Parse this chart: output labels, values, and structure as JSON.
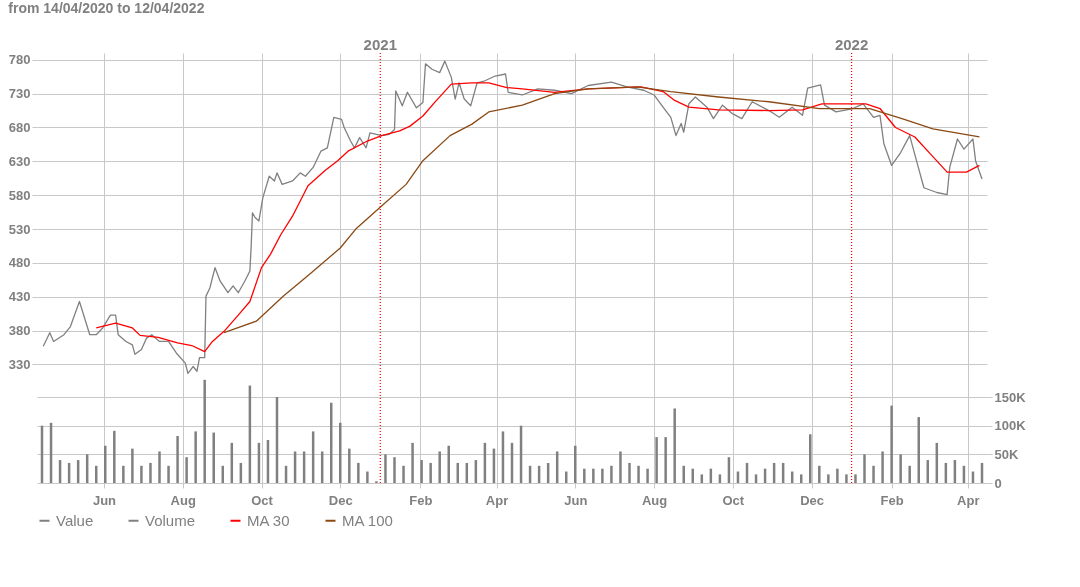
{
  "chart_data": {
    "type": "line",
    "title": "from 14/04/2020 to 12/04/2022",
    "xlim": [
      "2020-04-14",
      "2022-04-12"
    ],
    "ylim": [
      155,
      790
    ],
    "yticks": [
      330,
      380,
      430,
      480,
      530,
      580,
      630,
      680,
      730,
      780
    ],
    "y2lim": [
      0,
      750000
    ],
    "y2ticks": [
      0,
      {
        "value": 50000,
        "label": "50K"
      },
      {
        "value": 100000,
        "label": "100K"
      },
      {
        "value": 150000,
        "label": "150K"
      }
    ],
    "xticks": [
      {
        "value": "2020-06-01",
        "label": "Jun"
      },
      {
        "value": "2020-08-01",
        "label": "Aug"
      },
      {
        "value": "2020-10-01",
        "label": "Oct"
      },
      {
        "value": "2020-12-01",
        "label": "Dec"
      },
      {
        "value": "2021-02-01",
        "label": "Feb"
      },
      {
        "value": "2021-04-01",
        "label": "Apr"
      },
      {
        "value": "2021-06-01",
        "label": "Jun"
      },
      {
        "value": "2021-08-01",
        "label": "Aug"
      },
      {
        "value": "2021-10-01",
        "label": "Oct"
      },
      {
        "value": "2021-12-01",
        "label": "Dec"
      },
      {
        "value": "2022-02-01",
        "label": "Feb"
      },
      {
        "value": "2022-04-01",
        "label": "Apr"
      }
    ],
    "grid": true,
    "legend": "bottom",
    "ref_lines": [
      {
        "axis": "x",
        "value": "2021-01-01",
        "label": "2021",
        "color": "#ff0000",
        "line_style": "dotted"
      },
      {
        "axis": "x",
        "value": "2022-01-01",
        "label": "2022",
        "color": "#ff0000",
        "line_style": "dotted"
      }
    ],
    "series": [
      {
        "name": "Value",
        "color": "#808080",
        "x": [
          "2020-04-15",
          "2020-04-20",
          "2020-04-23",
          "2020-05-01",
          "2020-05-06",
          "2020-05-13",
          "2020-05-21",
          "2020-05-26",
          "2020-05-31",
          "2020-06-06",
          "2020-06-10",
          "2020-06-12",
          "2020-06-18",
          "2020-06-23",
          "2020-06-25",
          "2020-06-30",
          "2020-07-04",
          "2020-07-08",
          "2020-07-14",
          "2020-07-21",
          "2020-07-27",
          "2020-08-03",
          "2020-08-05",
          "2020-08-09",
          "2020-08-12",
          "2020-08-14",
          "2020-08-18",
          "2020-08-19",
          "2020-08-22",
          "2020-08-26",
          "2020-08-30",
          "2020-09-05",
          "2020-09-09",
          "2020-09-13",
          "2020-09-18",
          "2020-09-22",
          "2020-09-23",
          "2020-09-24",
          "2020-09-26",
          "2020-09-29",
          "2020-10-02",
          "2020-10-07",
          "2020-10-11",
          "2020-10-13",
          "2020-10-17",
          "2020-10-25",
          "2020-10-31",
          "2020-11-04",
          "2020-11-10",
          "2020-11-16",
          "2020-11-21",
          "2020-11-26",
          "2020-12-02",
          "2020-12-04",
          "2020-12-09",
          "2020-12-12",
          "2020-12-16",
          "2020-12-21",
          "2020-12-24",
          "2021-01-02",
          "2021-01-08",
          "2021-01-12",
          "2021-01-13",
          "2021-01-18",
          "2021-01-22",
          "2021-01-29",
          "2021-02-03",
          "2021-02-05",
          "2021-02-10",
          "2021-02-16",
          "2021-02-20",
          "2021-02-25",
          "2021-02-28",
          "2021-03-03",
          "2021-03-07",
          "2021-03-12",
          "2021-03-17",
          "2021-03-23",
          "2021-03-31",
          "2021-04-08",
          "2021-04-10",
          "2021-04-21",
          "2021-05-03",
          "2021-05-16",
          "2021-05-29",
          "2021-06-11",
          "2021-06-29",
          "2021-07-11",
          "2021-07-24",
          "2021-08-01",
          "2021-08-08",
          "2021-08-14",
          "2021-08-18",
          "2021-08-22",
          "2021-08-24",
          "2021-08-28",
          "2021-09-02",
          "2021-09-11",
          "2021-09-16",
          "2021-09-23",
          "2021-10-01",
          "2021-10-08",
          "2021-10-16",
          "2021-10-29",
          "2021-11-06",
          "2021-11-16",
          "2021-11-24",
          "2021-11-28",
          "2021-12-08",
          "2021-12-11",
          "2021-12-20",
          "2022-01-02",
          "2022-01-10",
          "2022-01-18",
          "2022-01-23",
          "2022-01-26",
          "2022-02-01",
          "2022-02-08",
          "2022-02-15",
          "2022-02-21",
          "2022-02-26",
          "2022-03-08",
          "2022-03-16",
          "2022-03-18",
          "2022-03-24",
          "2022-03-29",
          "2022-04-05",
          "2022-04-07",
          "2022-04-12"
        ],
        "values": [
          357,
          377,
          364,
          374,
          386,
          423,
          374,
          374,
          384,
          403,
          403,
          374,
          364,
          359,
          345,
          352,
          369,
          374,
          364,
          364,
          347,
          332,
          317,
          327,
          320,
          340,
          340,
          431,
          443,
          473,
          453,
          436,
          446,
          436,
          453,
          468,
          505,
          554,
          547,
          542,
          576,
          608,
          601,
          613,
          596,
          601,
          613,
          608,
          621,
          645,
          650,
          695,
          692,
          680,
          660,
          650,
          665,
          650,
          672,
          668,
          670,
          677,
          734,
          712,
          732,
          709,
          717,
          774,
          766,
          761,
          778,
          754,
          722,
          746,
          722,
          712,
          746,
          749,
          756,
          759,
          732,
          728,
          737,
          735,
          730,
          742,
          747,
          740,
          735,
          728,
          710,
          695,
          668,
          686,
          673,
          715,
          725,
          710,
          693,
          713,
          700,
          693,
          718,
          705,
          695,
          710,
          698,
          738,
          743,
          713,
          703,
          708,
          715,
          695,
          698,
          656,
          624,
          643,
          668,
          626,
          591,
          584,
          581,
          621,
          663,
          648,
          663,
          631,
          604
        ]
      },
      {
        "name": "Volume",
        "color": "#808080",
        "type": "bar",
        "axis": "y2",
        "x": [
          "2020-04-14",
          "2020-04-21",
          "2020-04-28",
          "2020-05-05",
          "2020-05-12",
          "2020-05-19",
          "2020-05-26",
          "2020-06-02",
          "2020-06-09",
          "2020-06-16",
          "2020-06-23",
          "2020-06-30",
          "2020-07-07",
          "2020-07-14",
          "2020-07-21",
          "2020-07-28",
          "2020-08-04",
          "2020-08-11",
          "2020-08-18",
          "2020-08-25",
          "2020-09-01",
          "2020-09-08",
          "2020-09-15",
          "2020-09-22",
          "2020-09-29",
          "2020-10-06",
          "2020-10-13",
          "2020-10-20",
          "2020-10-27",
          "2020-11-03",
          "2020-11-10",
          "2020-11-17",
          "2020-11-24",
          "2020-12-01",
          "2020-12-08",
          "2020-12-15",
          "2020-12-22",
          "2020-12-29",
          "2021-01-05",
          "2021-01-12",
          "2021-01-19",
          "2021-01-26",
          "2021-02-02",
          "2021-02-09",
          "2021-02-16",
          "2021-02-23",
          "2021-03-02",
          "2021-03-09",
          "2021-03-16",
          "2021-03-23",
          "2021-03-30",
          "2021-04-06",
          "2021-04-13",
          "2021-04-20",
          "2021-04-27",
          "2021-05-04",
          "2021-05-11",
          "2021-05-18",
          "2021-05-25",
          "2021-06-01",
          "2021-06-08",
          "2021-06-15",
          "2021-06-22",
          "2021-06-29",
          "2021-07-06",
          "2021-07-13",
          "2021-07-20",
          "2021-07-27",
          "2021-08-03",
          "2021-08-10",
          "2021-08-17",
          "2021-08-24",
          "2021-08-31",
          "2021-09-07",
          "2021-09-14",
          "2021-09-21",
          "2021-09-28",
          "2021-10-05",
          "2021-10-12",
          "2021-10-19",
          "2021-10-26",
          "2021-11-02",
          "2021-11-09",
          "2021-11-16",
          "2021-11-23",
          "2021-11-30",
          "2021-12-07",
          "2021-12-14",
          "2021-12-21",
          "2021-12-28",
          "2022-01-04",
          "2022-01-11",
          "2022-01-18",
          "2022-01-25",
          "2022-02-01",
          "2022-02-08",
          "2022-02-15",
          "2022-02-22",
          "2022-03-01",
          "2022-03-08",
          "2022-03-15",
          "2022-03-22",
          "2022-03-29",
          "2022-04-05",
          "2022-04-12"
        ],
        "values": [
          100000,
          105000,
          40000,
          35000,
          40000,
          50000,
          30000,
          65000,
          91000,
          30000,
          60000,
          30000,
          35000,
          55000,
          30000,
          82000,
          45000,
          90000,
          180000,
          88000,
          30000,
          70000,
          35000,
          170000,
          70000,
          75000,
          150000,
          30000,
          55000,
          55000,
          90000,
          55000,
          140000,
          105000,
          60000,
          35000,
          20000,
          3000,
          50000,
          45000,
          30000,
          70000,
          40000,
          35000,
          55000,
          65000,
          35000,
          35000,
          40000,
          70000,
          60000,
          90000,
          70000,
          100000,
          30000,
          30000,
          35000,
          55000,
          20000,
          65000,
          25000,
          25000,
          25000,
          30000,
          55000,
          35000,
          30000,
          25000,
          80000,
          80000,
          130000,
          30000,
          25000,
          15000,
          25000,
          15000,
          45000,
          20000,
          35000,
          15000,
          25000,
          35000,
          35000,
          20000,
          15000,
          85000,
          30000,
          15000,
          25000,
          15000,
          15000,
          50000,
          30000,
          55000,
          135000,
          50000,
          30000,
          115000,
          40000,
          70000,
          35000,
          40000,
          30000,
          20000,
          35000
        ]
      },
      {
        "name": "MA 30",
        "color": "#ff0000",
        "x": [
          "2020-05-26",
          "2020-06-10",
          "2020-06-23",
          "2020-06-29",
          "2020-07-13",
          "2020-07-28",
          "2020-08-08",
          "2020-08-18",
          "2020-08-24",
          "2020-09-02",
          "2020-09-13",
          "2020-09-22",
          "2020-10-01",
          "2020-10-08",
          "2020-10-16",
          "2020-10-25",
          "2020-11-06",
          "2020-11-19",
          "2020-11-29",
          "2020-12-07",
          "2020-12-22",
          "2021-01-02",
          "2021-01-16",
          "2021-01-24",
          "2021-02-03",
          "2021-02-13",
          "2021-02-25",
          "2021-03-13",
          "2021-03-26",
          "2021-04-09",
          "2021-04-21",
          "2021-05-16",
          "2021-06-11",
          "2021-07-22",
          "2021-08-08",
          "2021-08-17",
          "2021-08-28",
          "2021-09-20",
          "2021-10-29",
          "2021-11-24",
          "2021-12-09",
          "2022-01-12",
          "2022-01-23",
          "2022-02-04",
          "2022-02-19",
          "2022-03-03",
          "2022-03-16",
          "2022-03-31",
          "2022-04-10"
        ],
        "values": [
          384,
          391,
          384,
          373,
          370,
          362,
          358,
          349,
          364,
          379,
          403,
          423,
          473,
          493,
          522,
          549,
          594,
          616,
          631,
          645,
          660,
          668,
          675,
          682,
          697,
          719,
          744,
          746,
          746,
          739,
          737,
          732,
          737,
          740,
          733,
          720,
          710,
          706,
          705,
          706,
          715,
          715,
          708,
          680,
          666,
          641,
          614,
          614,
          624
        ]
      },
      {
        "name": "MA 100",
        "color": "#8b4a14",
        "x": [
          "2020-09-02",
          "2020-09-27",
          "2020-10-18",
          "2020-11-07",
          "2020-12-01",
          "2020-12-13",
          "2021-01-02",
          "2021-01-21",
          "2021-02-03",
          "2021-02-24",
          "2021-03-13",
          "2021-03-26",
          "2021-04-21",
          "2021-05-16",
          "2021-06-11",
          "2021-07-19",
          "2021-08-14",
          "2021-09-20",
          "2021-10-29",
          "2021-12-07",
          "2022-01-15",
          "2022-02-09",
          "2022-03-05",
          "2022-04-10"
        ],
        "values": [
          377,
          394,
          431,
          463,
          502,
          530,
          564,
          596,
          631,
          668,
          685,
          703,
          713,
          730,
          737,
          740,
          733,
          725,
          718,
          708,
          708,
          693,
          678,
          666
        ]
      }
    ]
  }
}
